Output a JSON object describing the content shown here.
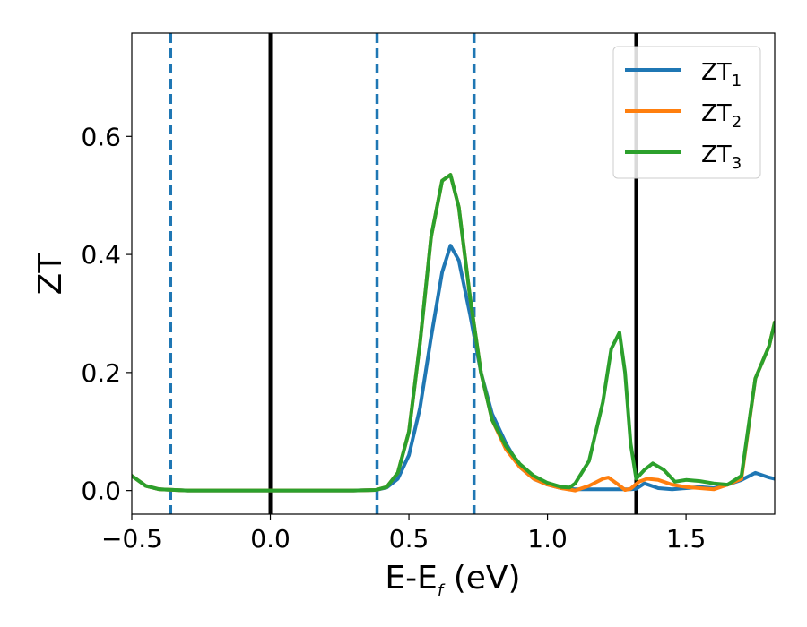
{
  "chart_data": {
    "type": "line",
    "xlabel": "E-E",
    "xlabel_sub": "f",
    "xlabel_unit": " (eV)",
    "ylabel": "ZT",
    "xlim": [
      -0.5,
      1.82
    ],
    "ylim": [
      -0.04,
      0.775
    ],
    "xticks": [
      -0.5,
      0.0,
      0.5,
      1.0,
      1.5
    ],
    "xtick_labels": [
      "−0.5",
      "0.0",
      "0.5",
      "1.0",
      "1.5"
    ],
    "yticks": [
      0.0,
      0.2,
      0.4,
      0.6
    ],
    "ytick_labels": [
      "0.0",
      "0.2",
      "0.4",
      "0.6"
    ],
    "grid": false,
    "legend_position": "top-right",
    "vlines": [
      {
        "x": 0.0,
        "style": "solid",
        "color": "#000000"
      },
      {
        "x": 1.32,
        "style": "solid",
        "color": "#000000"
      },
      {
        "x": -0.36,
        "style": "dashed",
        "color": "#1f77b4"
      },
      {
        "x": 0.385,
        "style": "dashed",
        "color": "#1f77b4"
      },
      {
        "x": 0.735,
        "style": "dashed",
        "color": "#1f77b4"
      }
    ],
    "series": [
      {
        "name": "ZT",
        "name_sub": "1",
        "color": "#1f77b4",
        "x": [
          -0.5,
          -0.45,
          -0.4,
          -0.3,
          0.0,
          0.3,
          0.38,
          0.42,
          0.46,
          0.5,
          0.54,
          0.58,
          0.62,
          0.65,
          0.68,
          0.72,
          0.76,
          0.8,
          0.85,
          0.9,
          0.95,
          1.0,
          1.05,
          1.1,
          1.15,
          1.2,
          1.25,
          1.3,
          1.32,
          1.35,
          1.4,
          1.45,
          1.5,
          1.55,
          1.6,
          1.65,
          1.7,
          1.75,
          1.8,
          1.82
        ],
        "y": [
          0.025,
          0.008,
          0.002,
          0.0,
          0.0,
          0.0,
          0.001,
          0.005,
          0.02,
          0.06,
          0.14,
          0.26,
          0.37,
          0.415,
          0.39,
          0.3,
          0.2,
          0.13,
          0.08,
          0.04,
          0.02,
          0.01,
          0.004,
          0.002,
          0.002,
          0.002,
          0.002,
          0.002,
          0.003,
          0.012,
          0.004,
          0.002,
          0.004,
          0.006,
          0.004,
          0.01,
          0.018,
          0.03,
          0.022,
          0.02
        ]
      },
      {
        "name": "ZT",
        "name_sub": "2",
        "color": "#ff7f0e",
        "x": [
          -0.5,
          -0.45,
          -0.4,
          -0.3,
          0.0,
          0.3,
          0.38,
          0.42,
          0.46,
          0.5,
          0.54,
          0.58,
          0.62,
          0.65,
          0.68,
          0.72,
          0.76,
          0.8,
          0.85,
          0.9,
          0.95,
          1.0,
          1.05,
          1.1,
          1.15,
          1.2,
          1.22,
          1.25,
          1.28,
          1.3,
          1.33,
          1.36,
          1.4,
          1.45,
          1.5,
          1.55,
          1.6,
          1.65,
          1.7,
          1.75,
          1.8,
          1.82
        ],
        "y": [
          0.025,
          0.008,
          0.002,
          0.0,
          0.0,
          0.0,
          0.001,
          0.006,
          0.03,
          0.1,
          0.25,
          0.43,
          0.525,
          0.535,
          0.48,
          0.33,
          0.2,
          0.12,
          0.07,
          0.04,
          0.02,
          0.01,
          0.004,
          0.0,
          0.008,
          0.02,
          0.022,
          0.012,
          0.001,
          0.003,
          0.015,
          0.02,
          0.018,
          0.01,
          0.006,
          0.004,
          0.002,
          0.01,
          0.02,
          0.19,
          0.245,
          0.285
        ]
      },
      {
        "name": "ZT",
        "name_sub": "3",
        "color": "#2ca02c",
        "x": [
          -0.5,
          -0.45,
          -0.4,
          -0.3,
          0.0,
          0.3,
          0.38,
          0.42,
          0.46,
          0.5,
          0.54,
          0.58,
          0.62,
          0.65,
          0.68,
          0.72,
          0.76,
          0.8,
          0.85,
          0.9,
          0.95,
          1.0,
          1.05,
          1.08,
          1.1,
          1.15,
          1.2,
          1.23,
          1.26,
          1.28,
          1.3,
          1.32,
          1.35,
          1.38,
          1.42,
          1.46,
          1.5,
          1.55,
          1.6,
          1.65,
          1.7,
          1.75,
          1.8,
          1.82
        ],
        "y": [
          0.025,
          0.008,
          0.002,
          0.0,
          0.0,
          0.0,
          0.001,
          0.006,
          0.03,
          0.1,
          0.25,
          0.43,
          0.525,
          0.535,
          0.48,
          0.33,
          0.2,
          0.12,
          0.075,
          0.045,
          0.025,
          0.013,
          0.006,
          0.005,
          0.012,
          0.05,
          0.15,
          0.24,
          0.268,
          0.2,
          0.08,
          0.02,
          0.035,
          0.046,
          0.035,
          0.015,
          0.018,
          0.016,
          0.012,
          0.01,
          0.025,
          0.19,
          0.245,
          0.285
        ]
      }
    ]
  }
}
